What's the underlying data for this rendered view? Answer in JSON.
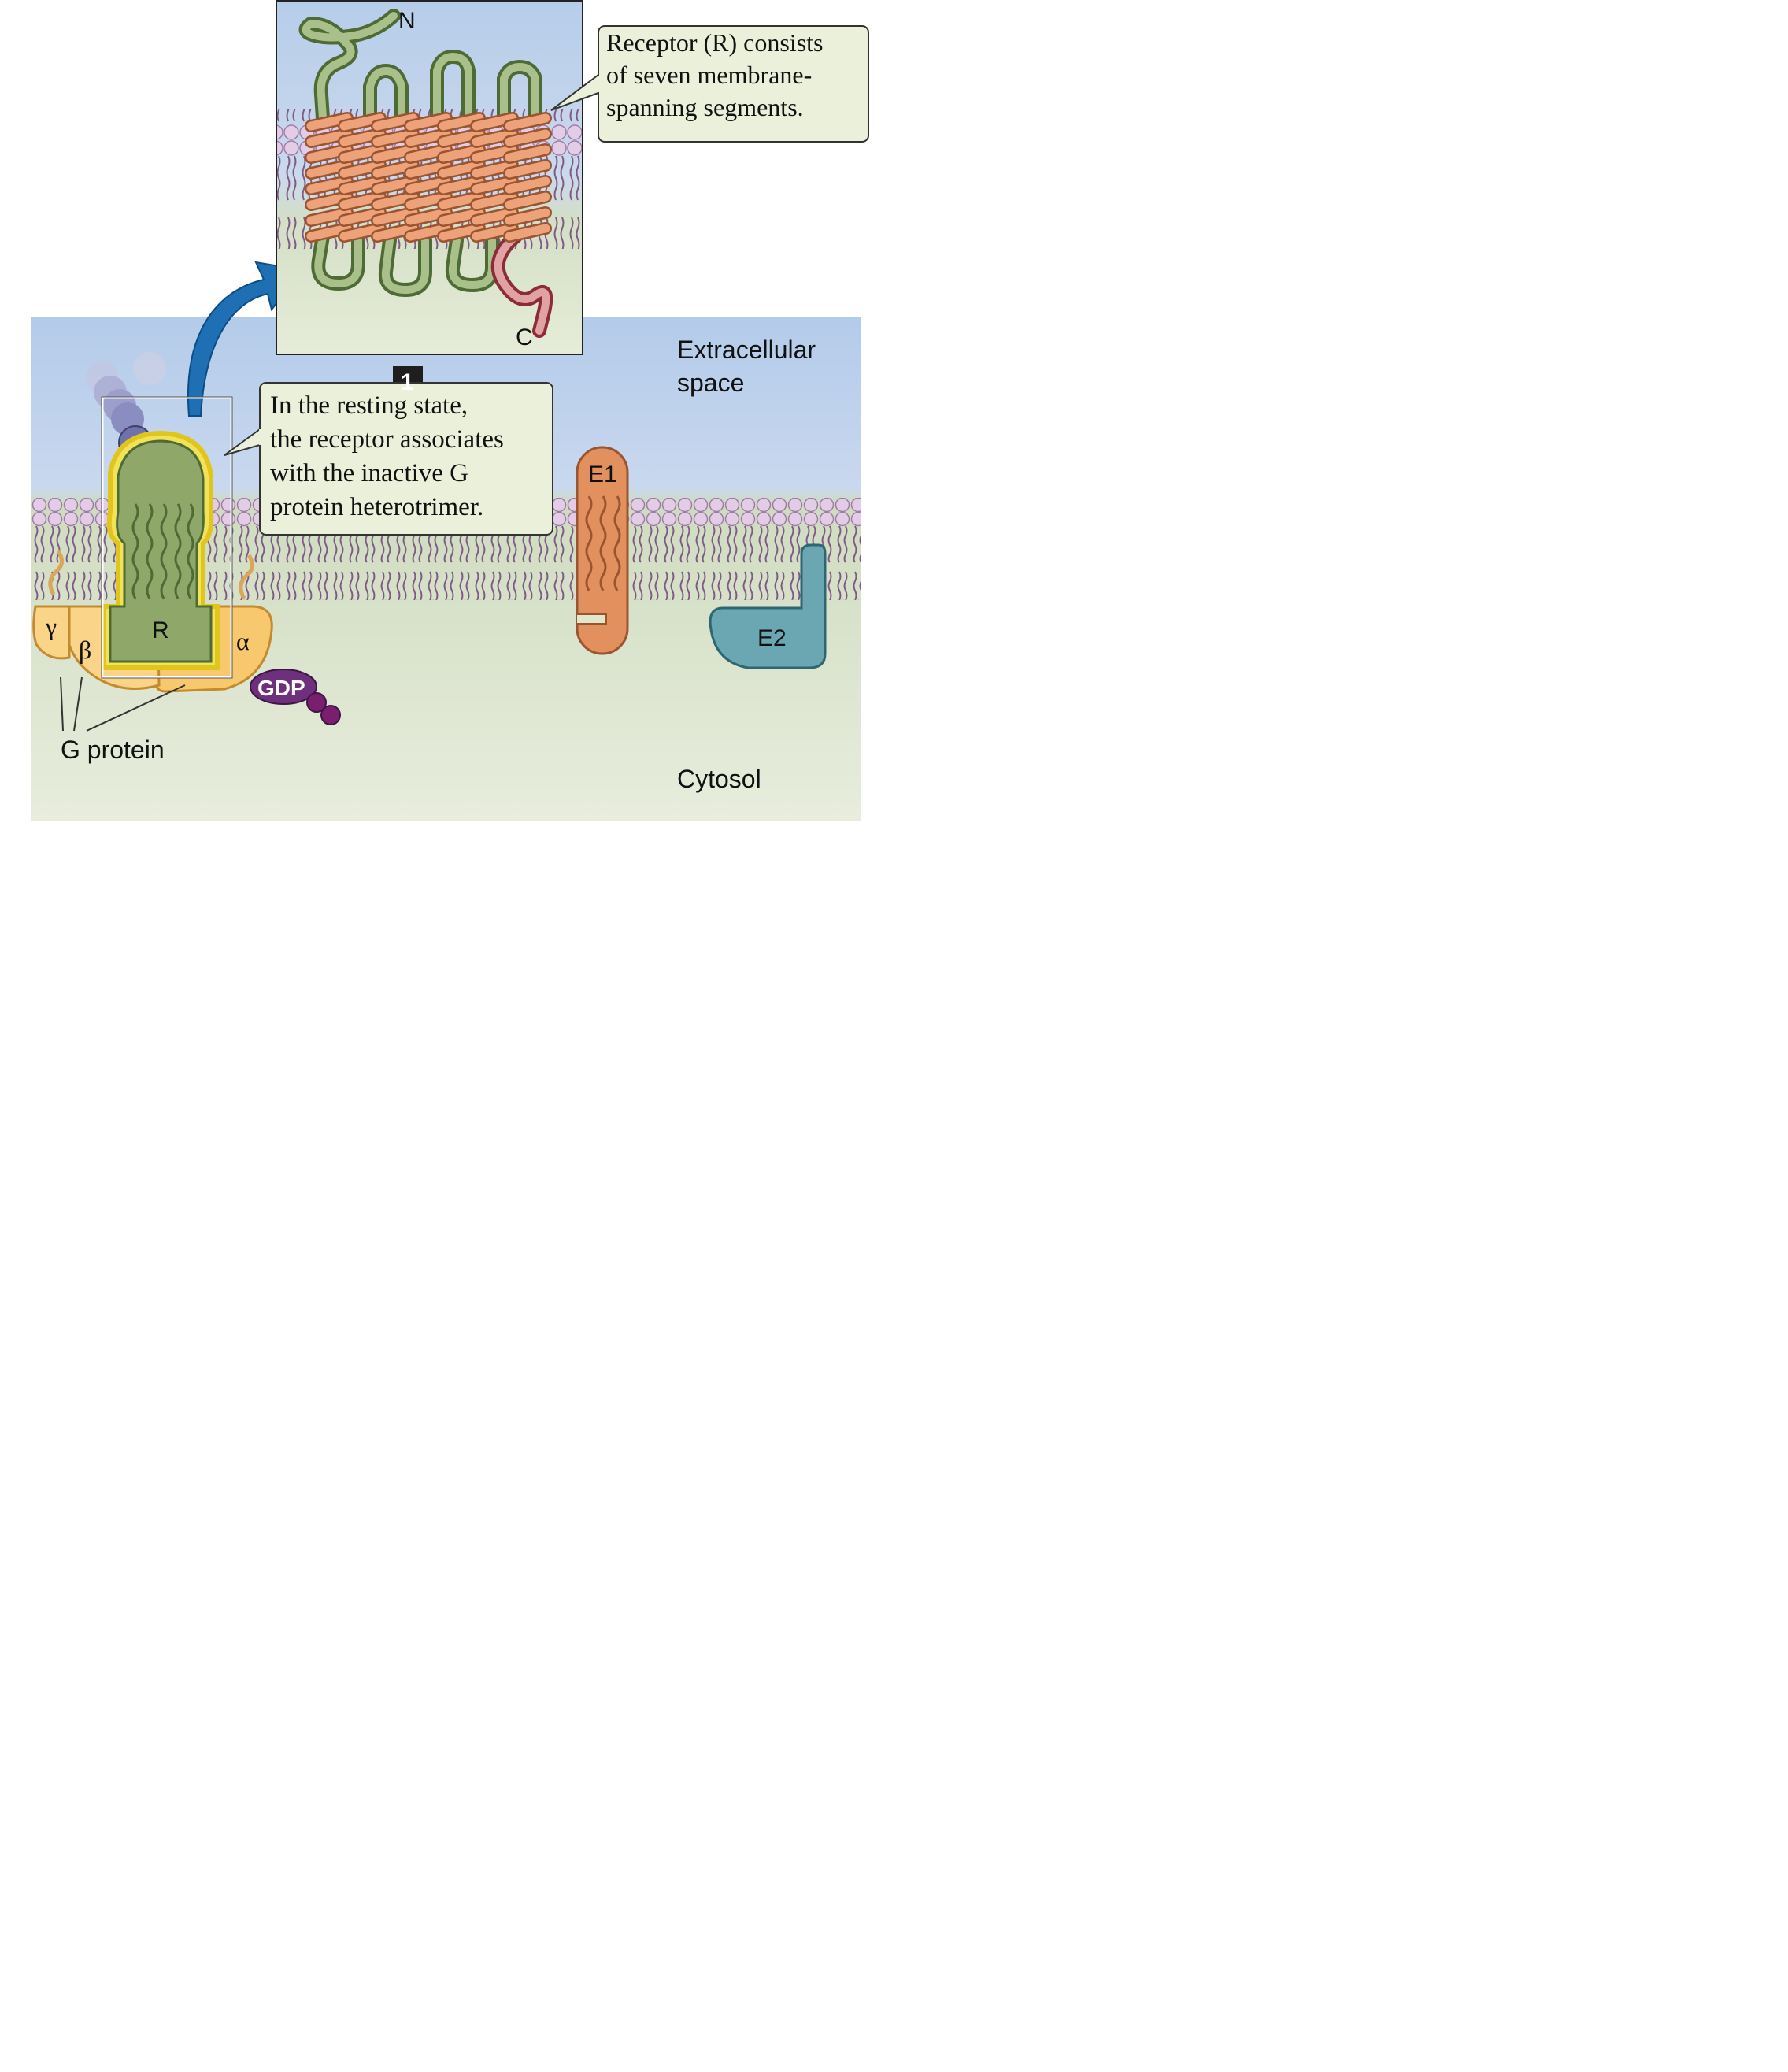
{
  "inset": {
    "caption": [
      "Receptor (R) consists",
      "of seven membrane-",
      "spanning segments."
    ],
    "n_terminus": "N",
    "c_terminus": "C"
  },
  "regions": {
    "extracellular": [
      "Extracellular",
      "space"
    ],
    "cytosol": "Cytosol"
  },
  "step": {
    "number": "1",
    "caption": [
      "In the resting state,",
      "the receptor associates",
      "with the inactive G",
      "protein heterotrimer."
    ]
  },
  "labels": {
    "receptor": "R",
    "gamma": "γ",
    "beta": "β",
    "alpha": "α",
    "gdp": "GDP",
    "g_protein": "G protein",
    "effector1": "E1",
    "effector2": "E2"
  },
  "colors": {
    "extracellular_top": "#b5cdea",
    "cytosol": "#dfe7cc",
    "receptor": "#8fa86a",
    "g_protein": "#f7c86e",
    "effector1": "#e2905e",
    "effector2": "#6aa7b3",
    "gdp": "#6e2f7c",
    "arrow": "#1f6fb5",
    "caption_box": "#eaf0da"
  }
}
